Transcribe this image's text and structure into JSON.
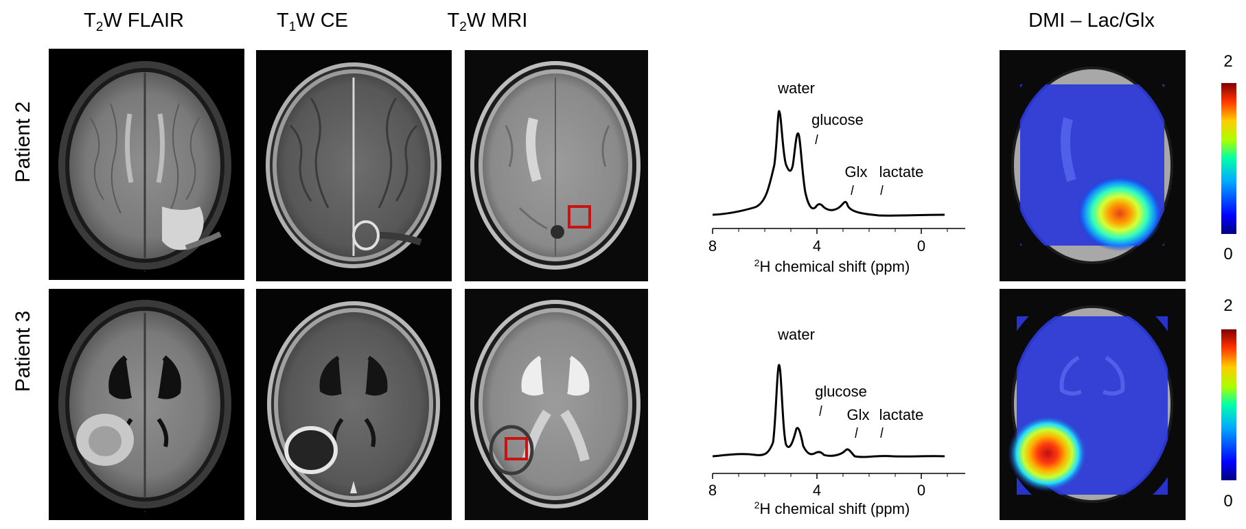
{
  "columns": {
    "flair": {
      "main": "T",
      "sub": "2",
      "rest": "W FLAIR"
    },
    "t1ce": {
      "main": "T",
      "sub": "1",
      "rest": "W CE"
    },
    "t2mri": {
      "main": "T",
      "sub": "2",
      "rest": "W MRI"
    },
    "dmi": "DMI – Lac/Glx"
  },
  "rows": [
    {
      "label": "Patient 2"
    },
    {
      "label": "Patient 3"
    }
  ],
  "colorbar": {
    "max": "2",
    "min": "0",
    "colors": [
      "#00007f",
      "#0000ff",
      "#00aaff",
      "#00ffaa",
      "#aaff00",
      "#ffcc00",
      "#ff3300",
      "#7f0000"
    ]
  },
  "roi_color": "#cc1111",
  "spectra": [
    {
      "peaks": {
        "water": "water",
        "glucose": "glucose",
        "glx": "Glx",
        "lactate": "lactate"
      },
      "xaxis": {
        "ticks": [
          "8",
          "4",
          "0"
        ],
        "label_sup": "2",
        "label": "H chemical shift (ppm)"
      }
    },
    {
      "peaks": {
        "water": "water",
        "glucose": "glucose",
        "glx": "Glx",
        "lactate": "lactate"
      },
      "xaxis": {
        "ticks": [
          "8",
          "4",
          "0"
        ],
        "label_sup": "2",
        "label": "H chemical shift (ppm)"
      }
    }
  ]
}
